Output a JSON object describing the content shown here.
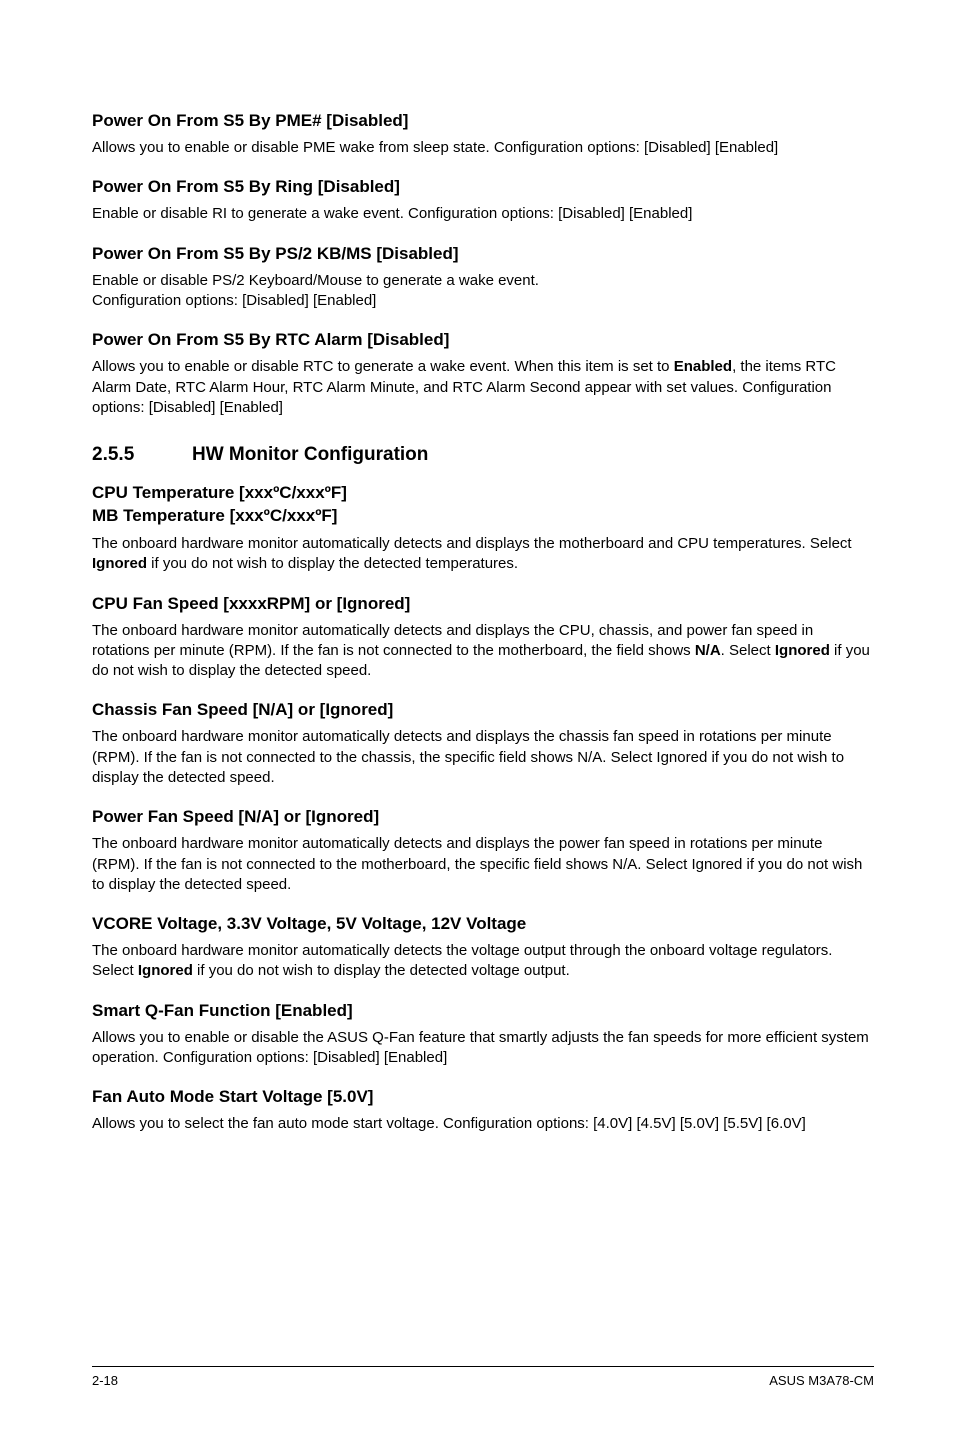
{
  "sections": [
    {
      "heading": "Power On From S5 By PME# [Disabled]",
      "body": "Allows you to enable or disable PME wake from sleep state. Configuration options: [Disabled] [Enabled]"
    },
    {
      "heading": "Power On From S5 By Ring [Disabled]",
      "body": "Enable or disable RI to generate a wake event. Configuration options: [Disabled] [Enabled]"
    },
    {
      "heading": "Power On From S5 By PS/2 KB/MS [Disabled]",
      "body": "Enable or disable PS/2 Keyboard/Mouse to generate a wake event.\nConfiguration options: [Disabled] [Enabled]"
    },
    {
      "heading": "Power On From S5 By RTC Alarm [Disabled]",
      "body_html": "Allows you to enable or disable RTC to generate a wake event. When this item is set to <b>Enabled</b>, the items RTC Alarm Date, RTC Alarm Hour, RTC Alarm Minute, and RTC Alarm Second appear with set values. Configuration options: [Disabled] [Enabled]"
    }
  ],
  "mainSection": {
    "number": "2.5.5",
    "title": "HW Monitor Configuration"
  },
  "sub": [
    {
      "heading_lines": [
        "CPU Temperature [xxxºC/xxxºF]",
        "MB Temperature [xxxºC/xxxºF]"
      ],
      "body_html": "The onboard hardware monitor automatically detects and displays the motherboard and CPU temperatures. Select <b>Ignored</b> if you do not wish to display the detected temperatures."
    },
    {
      "heading": "CPU Fan Speed [xxxxRPM] or [Ignored]",
      "body_html": "The onboard hardware monitor automatically detects and displays the CPU, chassis, and power fan speed in rotations per minute (RPM). If the fan is not connected to the motherboard, the field shows <b>N/A</b>. Select <b>Ignored</b> if you do not wish to display the detected speed."
    },
    {
      "heading": "Chassis Fan Speed [N/A] or [Ignored]",
      "body": "The onboard hardware monitor automatically detects and displays the chassis fan speed in rotations per minute (RPM). If the fan is not connected to the chassis, the specific field shows N/A. Select Ignored if you do not wish to display the detected speed."
    },
    {
      "heading": "Power Fan Speed [N/A] or [Ignored]",
      "body": "The onboard hardware monitor automatically detects and displays the power fan speed in rotations per minute (RPM). If the fan is not connected to the motherboard, the specific field shows N/A. Select Ignored if you do not wish to display the detected speed."
    },
    {
      "heading": "VCORE Voltage, 3.3V Voltage, 5V Voltage, 12V Voltage",
      "body_html": "The onboard hardware monitor automatically detects the voltage output through the onboard voltage regulators. Select <b>Ignored</b> if you do not wish to display the detected voltage output."
    },
    {
      "heading": "Smart Q-Fan Function [Enabled]",
      "body": "Allows you to enable or disable the ASUS Q-Fan feature that smartly adjusts the fan speeds for more efficient system operation. Configuration options: [Disabled] [Enabled]"
    },
    {
      "heading": "Fan Auto Mode Start Voltage [5.0V]",
      "body": "Allows you to select the fan auto mode start voltage. Configuration options: [4.0V] [4.5V] [5.0V] [5.5V] [6.0V]"
    }
  ],
  "footer": {
    "left": "2-18",
    "right": "ASUS M3A78-CM"
  },
  "colors": {
    "text": "#000000",
    "background": "#ffffff",
    "rule": "#000000"
  },
  "fonts": {
    "heading_size": 17,
    "body_size": 15,
    "main_section_size": 19,
    "footer_size": 13
  }
}
